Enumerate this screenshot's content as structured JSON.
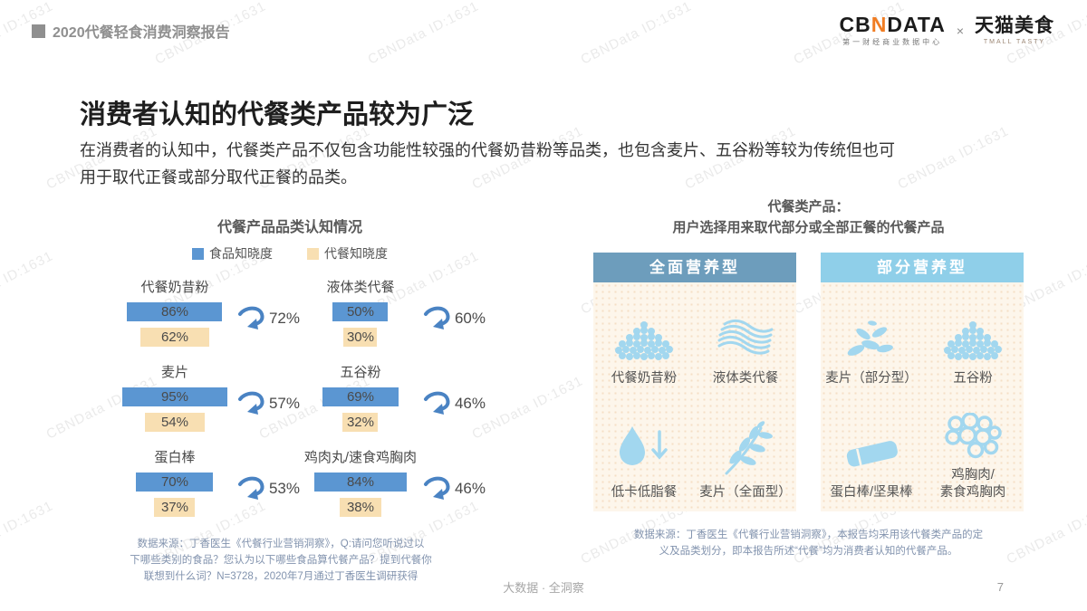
{
  "page": {
    "header": {
      "report_title": "2020代餐轻食消费洞察报告"
    },
    "logos": {
      "cbndata_pre": "CB",
      "cbndata_n": "N",
      "cbndata_post": "DATA",
      "cbndata_sub": "第一财经商业数据中心",
      "cross": "×",
      "tmall": "天猫美食",
      "tmall_sub": "TMALL TASTY"
    },
    "title": "消费者认知的代餐类产品较为广泛",
    "paragraph_line1": "在消费者的认知中，代餐类产品不仅包含功能性较强的代餐奶昔粉等品类，也包含麦片、五谷粉等较为传统但也可",
    "paragraph_line2": "用于取代正餐或部分取代正餐的品类。",
    "footer_center": "大数据 · 全洞察",
    "page_number": "7",
    "watermark": "CBNData ID:1631"
  },
  "chart": {
    "title": "代餐产品品类认知情况",
    "legend": [
      {
        "label": "食品知晓度",
        "color": "#5b96d2"
      },
      {
        "label": "代餐知晓度",
        "color": "#f8dfb2"
      }
    ],
    "arrow_color": "#4a83c3",
    "footnote_lines": [
      "数据来源：丁香医生《代餐行业营销洞察》，Q:请问您听说过以",
      "下哪些类别的食品？您认为以下哪些食品算代餐产品？提到代餐你",
      "联想到什么词？N=3728，2020年7月通过丁香医生调研获得"
    ]
  },
  "chart_data": {
    "type": "bar",
    "title": "代餐产品品类认知情况",
    "categories": [
      "代餐奶昔粉",
      "液体类代餐",
      "麦片",
      "五谷粉",
      "蛋白棒",
      "鸡肉丸/速食鸡胸肉"
    ],
    "series": [
      {
        "name": "食品知晓度",
        "values": [
          86,
          50,
          95,
          69,
          70,
          84
        ]
      },
      {
        "name": "代餐知晓度",
        "values": [
          62,
          30,
          54,
          32,
          37,
          38
        ]
      }
    ],
    "conversion_pct": {
      "values": [
        72,
        60,
        57,
        46,
        53,
        46
      ]
    },
    "value_unit": "%",
    "xlim": [
      0,
      100
    ],
    "layout": "2-column grid of paired horizontal bars with conversion arrows"
  },
  "right_panel": {
    "title_line1": "代餐类产品：",
    "title_line2": "用户选择用来取代部分或全部正餐的代餐产品",
    "cards": [
      {
        "header": "全面营养型",
        "header_color": "#6d9dbc",
        "items": [
          {
            "label": "代餐奶昔粉",
            "icon": "powder-pile"
          },
          {
            "label": "液体类代餐",
            "icon": "liquid-waves"
          },
          {
            "label": "低卡低脂餐",
            "icon": "droplet-down-arrow"
          },
          {
            "label": "麦片（全面型）",
            "icon": "wheat-branch"
          }
        ]
      },
      {
        "header": "部分营养型",
        "header_color": "#8fcfe9",
        "items": [
          {
            "label": "麦片（部分型）",
            "icon": "grain-seeds"
          },
          {
            "label": "五谷粉",
            "icon": "powder-pile"
          },
          {
            "label": "蛋白棒/坚果棒",
            "icon": "protein-bar"
          },
          {
            "label": "鸡胸肉/",
            "label2": "素食鸡胸肉",
            "icon": "chicken-circles"
          }
        ]
      }
    ],
    "footnote_line1": "数据来源：丁香医生《代餐行业营销洞察》，本报告均采用该代餐类产品的定",
    "footnote_line2": "义及品类划分，即本报告所述“代餐”均为消费者认知的代餐产品。"
  }
}
